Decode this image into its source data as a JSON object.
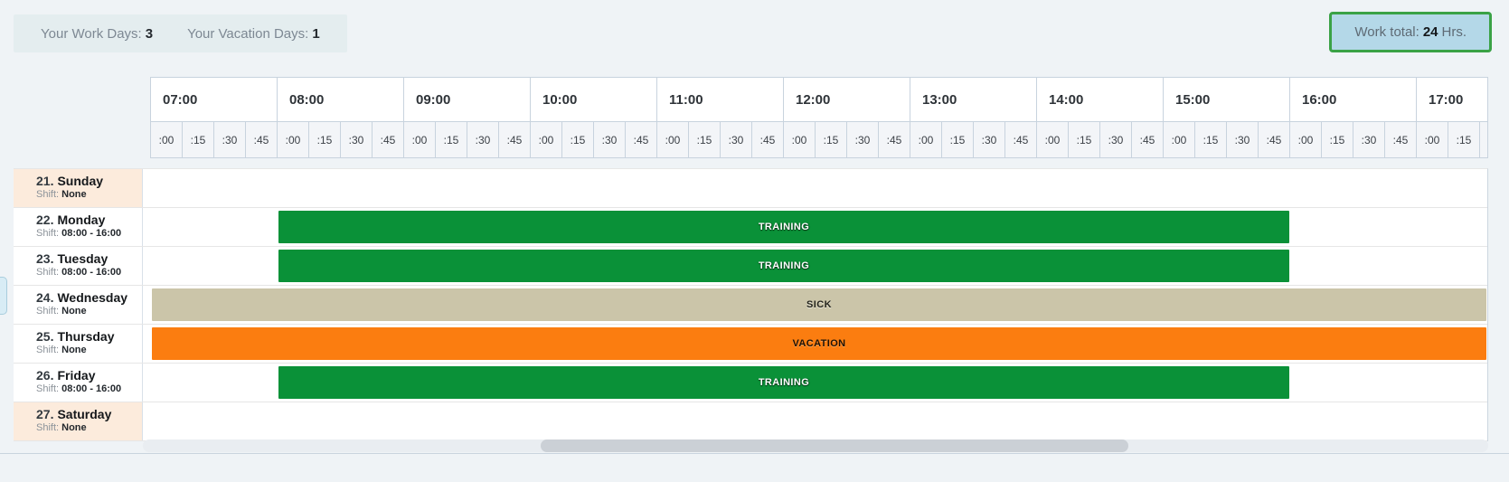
{
  "summary": {
    "work_days_label": "Your Work Days:",
    "work_days_value": "3",
    "vacation_days_label": "Your Vacation Days:",
    "vacation_days_value": "1"
  },
  "work_total": {
    "label": "Work total:",
    "value": "24",
    "unit": "Hrs."
  },
  "timeline": {
    "hours": [
      {
        "label": "07:00",
        "quarters": [
          ":00",
          ":15",
          ":30",
          ":45"
        ]
      },
      {
        "label": "08:00",
        "quarters": [
          ":00",
          ":15",
          ":30",
          ":45"
        ]
      },
      {
        "label": "09:00",
        "quarters": [
          ":00",
          ":15",
          ":30",
          ":45"
        ]
      },
      {
        "label": "10:00",
        "quarters": [
          ":00",
          ":15",
          ":30",
          ":45"
        ]
      },
      {
        "label": "11:00",
        "quarters": [
          ":00",
          ":15",
          ":30",
          ":45"
        ]
      },
      {
        "label": "12:00",
        "quarters": [
          ":00",
          ":15",
          ":30",
          ":45"
        ]
      },
      {
        "label": "13:00",
        "quarters": [
          ":00",
          ":15",
          ":30",
          ":45"
        ]
      },
      {
        "label": "14:00",
        "quarters": [
          ":00",
          ":15",
          ":30",
          ":45"
        ]
      },
      {
        "label": "15:00",
        "quarters": [
          ":00",
          ":15",
          ":30",
          ":45"
        ]
      },
      {
        "label": "16:00",
        "quarters": [
          ":00",
          ":15",
          ":30",
          ":45"
        ]
      },
      {
        "label": "17:00",
        "quarters": [
          ":00",
          ":15"
        ]
      }
    ]
  },
  "days": [
    {
      "date": "21.",
      "name": "Sunday",
      "shift_label": "Shift:",
      "shift_value": "None",
      "weekend": true,
      "bar": null
    },
    {
      "date": "22.",
      "name": "Monday",
      "shift_label": "Shift:",
      "shift_value": "08:00 - 16:00",
      "weekend": false,
      "bar": {
        "label": "TRAINING",
        "type": "training",
        "start": "08:00",
        "end": "16:00",
        "full": false
      }
    },
    {
      "date": "23.",
      "name": "Tuesday",
      "shift_label": "Shift:",
      "shift_value": "08:00 - 16:00",
      "weekend": false,
      "bar": {
        "label": "TRAINING",
        "type": "training",
        "start": "08:00",
        "end": "16:00",
        "full": false
      }
    },
    {
      "date": "24.",
      "name": "Wednesday",
      "shift_label": "Shift:",
      "shift_value": "None",
      "weekend": false,
      "bar": {
        "label": "SICK",
        "type": "sick",
        "full": true
      }
    },
    {
      "date": "25.",
      "name": "Thursday",
      "shift_label": "Shift:",
      "shift_value": "None",
      "weekend": false,
      "bar": {
        "label": "VACATION",
        "type": "vacation",
        "full": true
      }
    },
    {
      "date": "26.",
      "name": "Friday",
      "shift_label": "Shift:",
      "shift_value": "08:00 - 16:00",
      "weekend": false,
      "bar": {
        "label": "TRAINING",
        "type": "training",
        "start": "08:00",
        "end": "16:00",
        "full": false
      }
    },
    {
      "date": "27.",
      "name": "Saturday",
      "shift_label": "Shift:",
      "shift_value": "None",
      "weekend": true,
      "bar": null
    }
  ],
  "colors": {
    "training": "#0a9138",
    "sick": "#cbc5a9",
    "vacation": "#fb7d10",
    "weekend_row_bg": "#fcebdc",
    "summary_bg": "#e4edef",
    "work_total_bg": "#b4d8e8",
    "work_total_border": "#3aa246",
    "page_bg": "#eff3f6"
  }
}
